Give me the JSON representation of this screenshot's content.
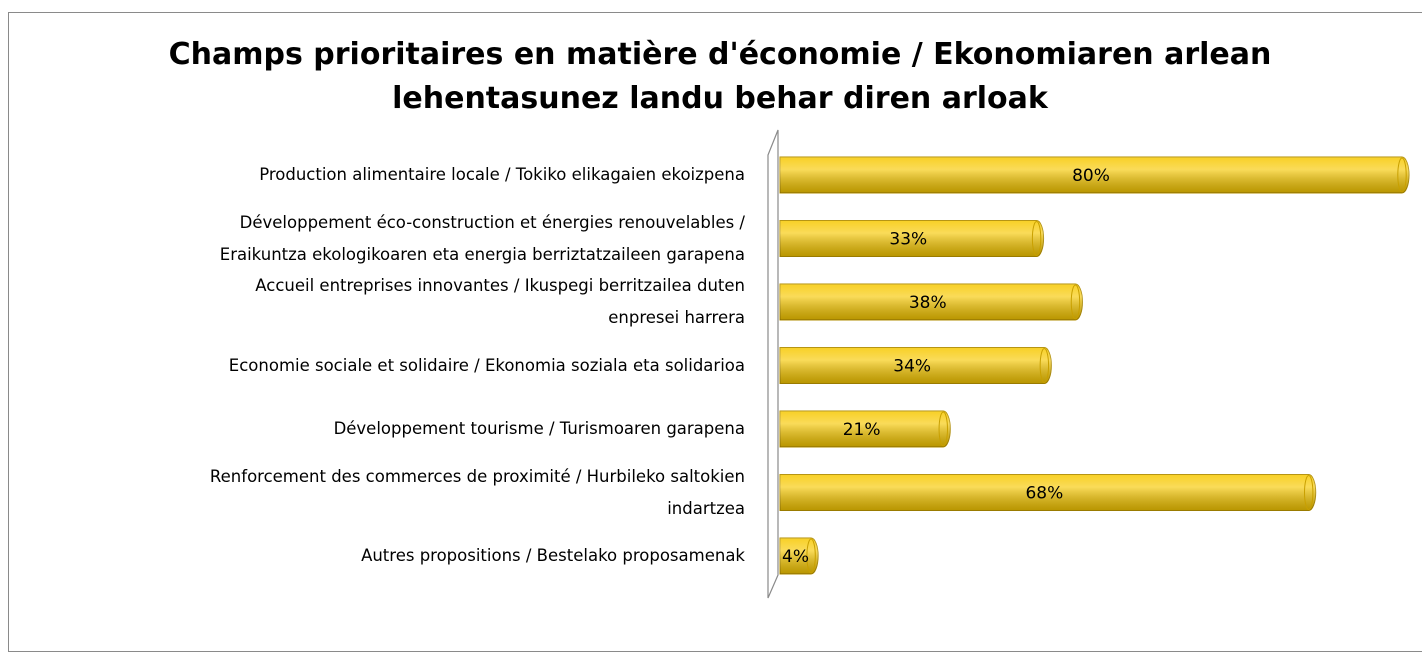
{
  "chart_data": {
    "type": "bar",
    "orientation": "horizontal",
    "title": "Champs prioritaires en matière d'économie / Ekonomiaren arlean\nlehentasunez landu behar diren arloak",
    "categories": [
      "Production alimentaire locale / Tokiko elikagaien ekoizpena",
      "Développement éco-construction et énergies renouvelables /\nEraikuntza ekologikoaren eta energia berriztatzaileen garapena",
      "Accueil entreprises innovantes / Ikuspegi  berritzailea duten\nenpresei harrera",
      "Economie sociale et solidaire / Ekonomia soziala eta solidarioa",
      "Développement tourisme / Turismoaren garapena",
      "Renforcement des commerces de proximité / Hurbileko saltokien\nindartzea",
      "Autres propositions / Bestelako proposamenak"
    ],
    "values": [
      80,
      33,
      38,
      34,
      21,
      68,
      4
    ],
    "value_labels": [
      "80%",
      "33%",
      "38%",
      "34%",
      "21%",
      "68%",
      "4%"
    ],
    "color": "#f7c800",
    "xlim": [
      0,
      80
    ]
  }
}
